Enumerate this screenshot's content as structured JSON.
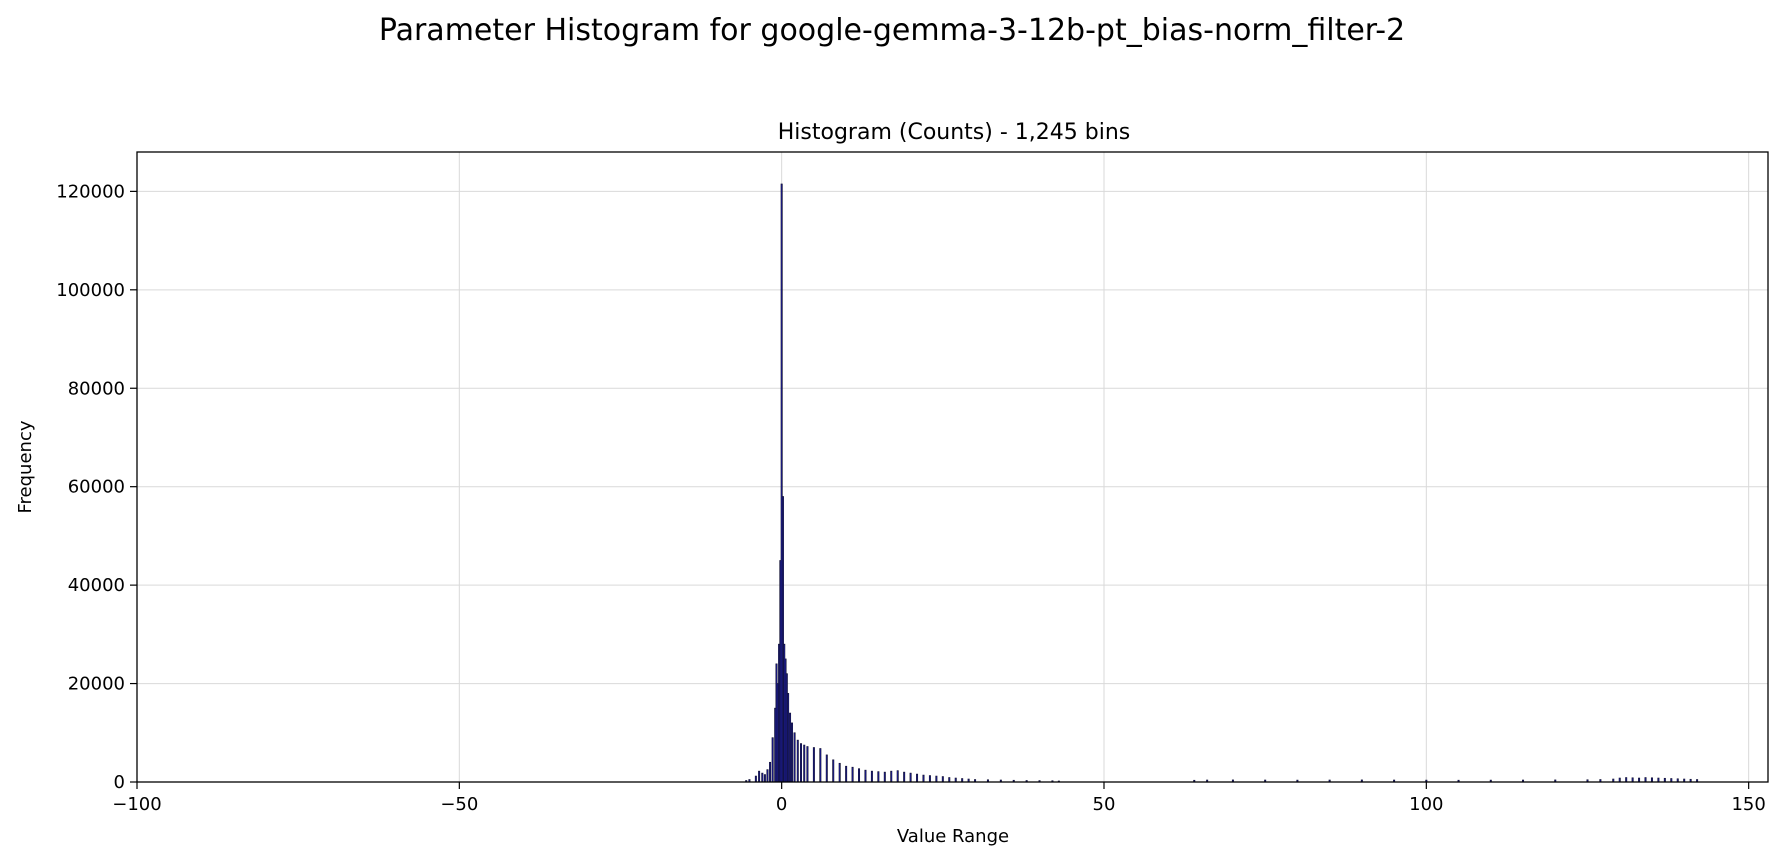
{
  "chart_data": {
    "type": "bar",
    "title": "Parameter Histogram for google-gemma-3-12b-pt_bias-norm_filter-2",
    "subtitle": "Histogram (Counts) - 1,245 bins",
    "xlabel": "Value Range",
    "ylabel": "Frequency",
    "xlim": [
      -100,
      153
    ],
    "ylim": [
      0,
      128000
    ],
    "xticks": [
      -100,
      -50,
      0,
      50,
      100,
      150
    ],
    "xtick_labels": [
      "−100",
      "−50",
      "0",
      "50",
      "100",
      "150"
    ],
    "yticks": [
      0,
      20000,
      40000,
      60000,
      80000,
      100000,
      120000
    ],
    "ytick_labels": [
      "0",
      "20000",
      "40000",
      "60000",
      "80000",
      "100000",
      "120000"
    ],
    "grid": true,
    "bar_color": "#1f1fb0",
    "edge_color": "#111133",
    "x": [
      -5.5,
      -5.0,
      -4.0,
      -3.5,
      -3.0,
      -2.6,
      -2.2,
      -1.8,
      -1.4,
      -1.0,
      -0.8,
      -0.6,
      -0.4,
      -0.2,
      0.0,
      0.2,
      0.4,
      0.6,
      0.8,
      1.0,
      1.3,
      1.6,
      2.0,
      2.5,
      3.0,
      3.5,
      4.0,
      5.0,
      6.0,
      7.0,
      8.0,
      9.0,
      10.0,
      11.0,
      12.0,
      13.0,
      14.0,
      15.0,
      16.0,
      17.0,
      18.0,
      19.0,
      20.0,
      21.0,
      22.0,
      23.0,
      24.0,
      25.0,
      26.0,
      27.0,
      28.0,
      29.0,
      30.0,
      32.0,
      34.0,
      36.0,
      38.0,
      40.0,
      42.0,
      43.0,
      64.0,
      66.0,
      70.0,
      75.0,
      80.0,
      85.0,
      90.0,
      95.0,
      100.0,
      105.0,
      110.0,
      115.0,
      120.0,
      125.0,
      127.0,
      129.0,
      130.0,
      131.0,
      132.0,
      133.0,
      134.0,
      135.0,
      136.0,
      137.0,
      138.0,
      139.0,
      140.0,
      141.0,
      142.0
    ],
    "values": [
      300,
      500,
      1200,
      2200,
      1800,
      1500,
      2500,
      4000,
      9000,
      15000,
      24000,
      20000,
      28000,
      45000,
      121500,
      58000,
      28000,
      25000,
      22000,
      18000,
      14000,
      12000,
      10000,
      8500,
      7800,
      7500,
      7200,
      7000,
      6800,
      5500,
      4500,
      3800,
      3200,
      3000,
      2700,
      2400,
      2200,
      2100,
      2000,
      2200,
      2300,
      2000,
      1800,
      1600,
      1400,
      1300,
      1200,
      1100,
      900,
      800,
      700,
      600,
      500,
      450,
      400,
      350,
      300,
      280,
      250,
      200,
      350,
      400,
      420,
      400,
      380,
      400,
      420,
      400,
      380,
      360,
      380,
      400,
      420,
      450,
      500,
      600,
      800,
      900,
      850,
      800,
      900,
      850,
      800,
      750,
      700,
      650,
      600,
      550,
      500
    ],
    "bin_width": 0.2
  }
}
